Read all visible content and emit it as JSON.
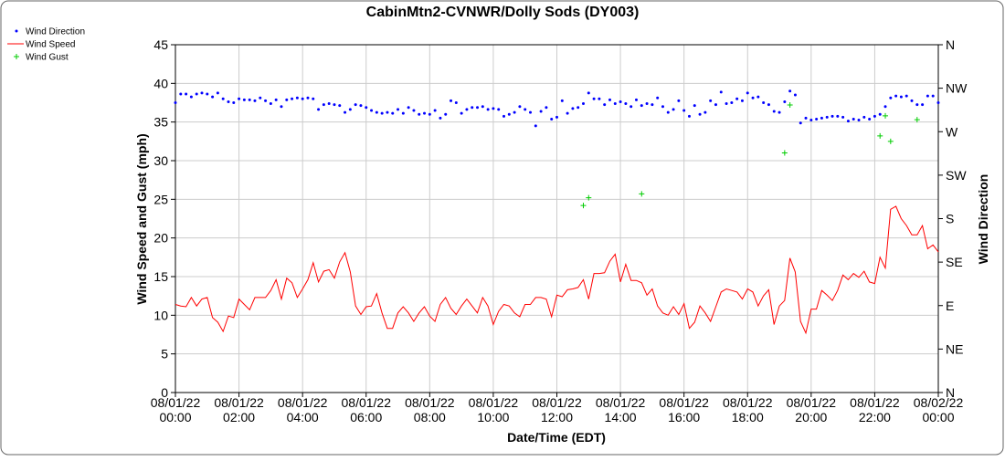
{
  "chart_data": {
    "type": "line",
    "title": "CabinMtn2-CVNWR/Dolly Sods (DY003)",
    "x_label": "Date/Time (EDT)",
    "y_label": "Wind Speed and Gust (mph)",
    "y2_label": "Wind Direction",
    "grid": true,
    "xlim": [
      "08/01/22 00:00",
      "08/02/22 00:00"
    ],
    "xticks": [
      "08/01/22 00:00",
      "08/01/22 02:00",
      "08/01/22 04:00",
      "08/01/22 06:00",
      "08/01/22 08:00",
      "08/01/22 10:00",
      "08/01/22 12:00",
      "08/01/22 14:00",
      "08/01/22 16:00",
      "08/01/22 18:00",
      "08/01/22 20:00",
      "08/01/22 22:00",
      "08/02/22 00:00"
    ],
    "ylim": [
      0,
      45
    ],
    "yticks": [
      0,
      5,
      10,
      15,
      20,
      25,
      30,
      35,
      40,
      45
    ],
    "y2lim": [
      0,
      360
    ],
    "y2ticks": [
      {
        "value": 0,
        "label": "N"
      },
      {
        "value": 45,
        "label": "NE"
      },
      {
        "value": 90,
        "label": "E"
      },
      {
        "value": 135,
        "label": "SE"
      },
      {
        "value": 180,
        "label": "S"
      },
      {
        "value": 225,
        "label": "SW"
      },
      {
        "value": 270,
        "label": "W"
      },
      {
        "value": 315,
        "label": "NW"
      },
      {
        "value": 360,
        "label": "N"
      }
    ],
    "x": [
      "08/01/22 00:00",
      "08/01/22 00:10",
      "08/01/22 00:20",
      "08/01/22 00:30",
      "08/01/22 00:40",
      "08/01/22 00:50",
      "08/01/22 01:00",
      "08/01/22 01:10",
      "08/01/22 01:20",
      "08/01/22 01:30",
      "08/01/22 01:40",
      "08/01/22 01:50",
      "08/01/22 02:00",
      "08/01/22 02:10",
      "08/01/22 02:20",
      "08/01/22 02:30",
      "08/01/22 02:40",
      "08/01/22 02:50",
      "08/01/22 03:00",
      "08/01/22 03:10",
      "08/01/22 03:20",
      "08/01/22 03:30",
      "08/01/22 03:40",
      "08/01/22 03:50",
      "08/01/22 04:00",
      "08/01/22 04:10",
      "08/01/22 04:20",
      "08/01/22 04:30",
      "08/01/22 04:40",
      "08/01/22 04:50",
      "08/01/22 05:00",
      "08/01/22 05:10",
      "08/01/22 05:20",
      "08/01/22 05:30",
      "08/01/22 05:40",
      "08/01/22 05:50",
      "08/01/22 06:00",
      "08/01/22 06:10",
      "08/01/22 06:20",
      "08/01/22 06:30",
      "08/01/22 06:40",
      "08/01/22 06:50",
      "08/01/22 07:00",
      "08/01/22 07:10",
      "08/01/22 07:20",
      "08/01/22 07:30",
      "08/01/22 07:40",
      "08/01/22 07:50",
      "08/01/22 08:00",
      "08/01/22 08:10",
      "08/01/22 08:20",
      "08/01/22 08:30",
      "08/01/22 08:40",
      "08/01/22 08:50",
      "08/01/22 09:00",
      "08/01/22 09:10",
      "08/01/22 09:20",
      "08/01/22 09:30",
      "08/01/22 09:40",
      "08/01/22 09:50",
      "08/01/22 10:00",
      "08/01/22 10:10",
      "08/01/22 10:20",
      "08/01/22 10:30",
      "08/01/22 10:40",
      "08/01/22 10:50",
      "08/01/22 11:00",
      "08/01/22 11:10",
      "08/01/22 11:20",
      "08/01/22 11:30",
      "08/01/22 11:40",
      "08/01/22 11:50",
      "08/01/22 12:00",
      "08/01/22 12:10",
      "08/01/22 12:20",
      "08/01/22 12:30",
      "08/01/22 12:40",
      "08/01/22 12:50",
      "08/01/22 13:00",
      "08/01/22 13:10",
      "08/01/22 13:20",
      "08/01/22 13:30",
      "08/01/22 13:40",
      "08/01/22 13:50",
      "08/01/22 14:00",
      "08/01/22 14:10",
      "08/01/22 14:20",
      "08/01/22 14:30",
      "08/01/22 14:40",
      "08/01/22 14:50",
      "08/01/22 15:00",
      "08/01/22 15:10",
      "08/01/22 15:20",
      "08/01/22 15:30",
      "08/01/22 15:40",
      "08/01/22 15:50",
      "08/01/22 16:00",
      "08/01/22 16:10",
      "08/01/22 16:20",
      "08/01/22 16:30",
      "08/01/22 16:40",
      "08/01/22 16:50",
      "08/01/22 17:00",
      "08/01/22 17:10",
      "08/01/22 17:20",
      "08/01/22 17:30",
      "08/01/22 17:40",
      "08/01/22 17:50",
      "08/01/22 18:00",
      "08/01/22 18:10",
      "08/01/22 18:20",
      "08/01/22 18:30",
      "08/01/22 18:40",
      "08/01/22 18:50",
      "08/01/22 19:00",
      "08/01/22 19:10",
      "08/01/22 19:20",
      "08/01/22 19:30",
      "08/01/22 19:40",
      "08/01/22 19:50",
      "08/01/22 20:00",
      "08/01/22 20:10",
      "08/01/22 20:20",
      "08/01/22 20:30",
      "08/01/22 20:40",
      "08/01/22 20:50",
      "08/01/22 21:00",
      "08/01/22 21:10",
      "08/01/22 21:20",
      "08/01/22 21:30",
      "08/01/22 21:40",
      "08/01/22 21:50",
      "08/01/22 22:00",
      "08/01/22 22:10",
      "08/01/22 22:20",
      "08/01/22 22:30",
      "08/01/22 22:40",
      "08/01/22 22:50",
      "08/01/22 23:00",
      "08/01/22 23:10",
      "08/01/22 23:20",
      "08/01/22 23:30",
      "08/01/22 23:40",
      "08/01/22 23:50",
      "08/02/22 00:00"
    ],
    "series": [
      {
        "name": "Wind Direction",
        "color": "#0000ff",
        "marker": "dot",
        "axis": "y2",
        "values": [
          300,
          309,
          309,
          306,
          309,
          310,
          309,
          306,
          310,
          304,
          301,
          300,
          304,
          303,
          303,
          302,
          305,
          302,
          299,
          303,
          296,
          303,
          304,
          305,
          304,
          305,
          304,
          293,
          298,
          299,
          298,
          297,
          290,
          293,
          298,
          297,
          295,
          292,
          290,
          289,
          290,
          289,
          293,
          289,
          295,
          292,
          288,
          289,
          288,
          292,
          284,
          288,
          302,
          300,
          289,
          293,
          295,
          295,
          296,
          293,
          294,
          293,
          286,
          288,
          290,
          296,
          293,
          290,
          276,
          291,
          295,
          283,
          285,
          302,
          289,
          294,
          295,
          299,
          310,
          304,
          304,
          298,
          303,
          299,
          301,
          299,
          296,
          303,
          297,
          299,
          298,
          305,
          296,
          290,
          293,
          302,
          292,
          286,
          297,
          288,
          290,
          302,
          298,
          311,
          299,
          300,
          304,
          302,
          310,
          305,
          306,
          300,
          298,
          291,
          290,
          301,
          312,
          308,
          279,
          284,
          282,
          283,
          284,
          285,
          286,
          286,
          285,
          281,
          283,
          282,
          285,
          283,
          286,
          288,
          296,
          305,
          307,
          306,
          307,
          302,
          298,
          298,
          307,
          307,
          300
        ]
      },
      {
        "name": "Wind Speed",
        "color": "#ff0000",
        "marker": "line",
        "values": [
          11.4,
          11.2,
          11.1,
          12.3,
          11.2,
          12.1,
          12.3,
          9.7,
          9.1,
          7.9,
          9.9,
          9.7,
          12.1,
          11.4,
          10.7,
          12.3,
          12.3,
          12.3,
          13.2,
          14.6,
          12.1,
          14.8,
          14.2,
          12.3,
          13.4,
          14.6,
          16.8,
          14.3,
          15.7,
          15.9,
          14.8,
          16.9,
          18.1,
          15.6,
          11.2,
          10.1,
          11.1,
          11.2,
          12.8,
          10.3,
          8.3,
          8.3,
          10.3,
          11.1,
          10.3,
          9.2,
          10.3,
          11.1,
          9.9,
          9.2,
          11.4,
          12.3,
          10.9,
          10.1,
          11.2,
          12.1,
          11.2,
          10.3,
          12.3,
          11.2,
          8.8,
          10.5,
          11.4,
          11.2,
          10.3,
          9.8,
          11.4,
          11.4,
          12.3,
          12.3,
          12.1,
          9.8,
          12.6,
          12.4,
          13.3,
          13.4,
          13.6,
          14.6,
          12.1,
          15.4,
          15.4,
          15.5,
          17.0,
          17.9,
          14.3,
          16.6,
          14.5,
          14.5,
          14.2,
          12.6,
          13.4,
          11.2,
          10.3,
          10.0,
          11.1,
          10.1,
          11.5,
          8.3,
          9.1,
          11.2,
          10.3,
          9.2,
          11.1,
          13.0,
          13.4,
          13.2,
          13.0,
          12.1,
          13.4,
          13.0,
          11.2,
          12.5,
          13.3,
          8.8,
          11.2,
          11.9,
          17.4,
          15.6,
          9.2,
          7.7,
          10.8,
          10.8,
          13.2,
          12.6,
          11.9,
          13.2,
          15.2,
          14.6,
          15.4,
          14.9,
          15.7,
          14.3,
          14.1,
          17.5,
          16.1,
          23.7,
          24.1,
          22.5,
          21.6,
          20.4,
          20.4,
          21.6,
          18.6,
          19.1,
          18.2
        ]
      },
      {
        "name": "Wind Gust",
        "color": "#00cc00",
        "marker": "plus",
        "values": [
          null,
          null,
          null,
          null,
          null,
          null,
          null,
          null,
          null,
          null,
          null,
          null,
          null,
          null,
          null,
          null,
          null,
          null,
          null,
          null,
          null,
          null,
          null,
          null,
          null,
          null,
          null,
          null,
          null,
          null,
          null,
          null,
          null,
          null,
          null,
          null,
          null,
          null,
          null,
          null,
          null,
          null,
          null,
          null,
          null,
          null,
          null,
          null,
          null,
          null,
          null,
          null,
          null,
          null,
          null,
          null,
          null,
          null,
          null,
          null,
          null,
          null,
          null,
          null,
          null,
          null,
          null,
          null,
          null,
          null,
          null,
          null,
          null,
          null,
          null,
          null,
          null,
          24.2,
          25.2,
          null,
          null,
          null,
          null,
          null,
          null,
          null,
          null,
          null,
          25.7,
          null,
          null,
          null,
          null,
          null,
          null,
          null,
          null,
          null,
          null,
          null,
          null,
          null,
          null,
          null,
          null,
          null,
          null,
          null,
          null,
          null,
          null,
          null,
          null,
          null,
          null,
          31.0,
          37.2,
          null,
          null,
          null,
          null,
          null,
          null,
          null,
          null,
          null,
          null,
          null,
          null,
          null,
          null,
          null,
          null,
          33.2,
          35.8,
          32.5,
          null,
          null,
          null,
          null,
          35.3,
          null,
          null,
          null,
          null
        ]
      }
    ]
  }
}
